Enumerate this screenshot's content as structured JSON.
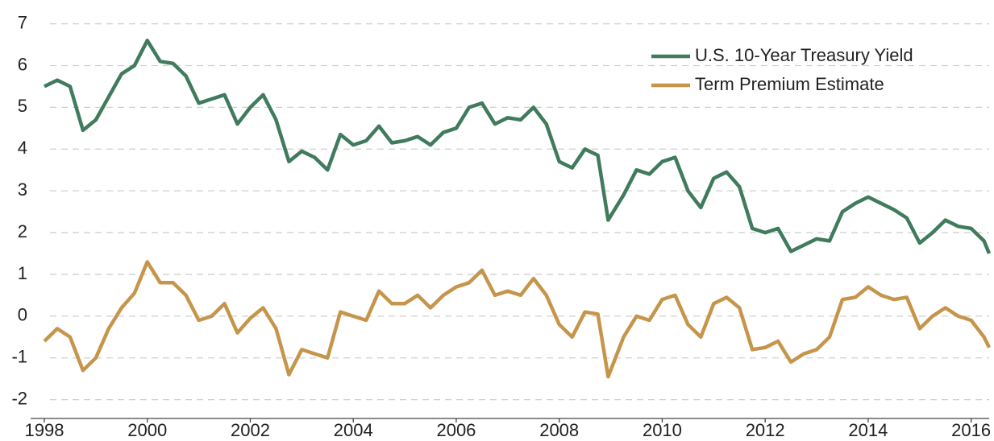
{
  "chart_data": {
    "type": "line",
    "x": [
      1998.0,
      1998.25,
      1998.5,
      1998.75,
      1999.0,
      1999.25,
      1999.5,
      1999.75,
      2000.0,
      2000.25,
      2000.5,
      2000.75,
      2001.0,
      2001.25,
      2001.5,
      2001.75,
      2002.0,
      2002.25,
      2002.5,
      2002.75,
      2003.0,
      2003.25,
      2003.5,
      2003.75,
      2004.0,
      2004.25,
      2004.5,
      2004.75,
      2005.0,
      2005.25,
      2005.5,
      2005.75,
      2006.0,
      2006.25,
      2006.5,
      2006.75,
      2007.0,
      2007.25,
      2007.5,
      2007.75,
      2008.0,
      2008.25,
      2008.5,
      2008.75,
      2008.95,
      2009.25,
      2009.5,
      2009.75,
      2010.0,
      2010.25,
      2010.5,
      2010.75,
      2011.0,
      2011.25,
      2011.5,
      2011.75,
      2012.0,
      2012.25,
      2012.5,
      2012.75,
      2013.0,
      2013.25,
      2013.5,
      2013.75,
      2014.0,
      2014.25,
      2014.5,
      2014.75,
      2015.0,
      2015.25,
      2015.5,
      2015.75,
      2016.0,
      2016.25,
      2016.35
    ],
    "series": [
      {
        "name": "U.S. 10-Year Treasury Yield",
        "color": "#3f7b5c",
        "values": [
          5.5,
          5.65,
          5.5,
          4.45,
          4.7,
          5.25,
          5.8,
          6.0,
          6.6,
          6.1,
          6.05,
          5.75,
          5.1,
          5.2,
          5.3,
          4.6,
          5.0,
          5.3,
          4.7,
          3.7,
          3.95,
          3.8,
          3.5,
          4.35,
          4.1,
          4.2,
          4.55,
          4.15,
          4.2,
          4.3,
          4.1,
          4.4,
          4.5,
          5.0,
          5.1,
          4.6,
          4.75,
          4.7,
          5.0,
          4.6,
          3.7,
          3.55,
          4.0,
          3.85,
          2.3,
          2.9,
          3.5,
          3.4,
          3.7,
          3.8,
          3.0,
          2.6,
          3.3,
          3.45,
          3.1,
          2.1,
          2.0,
          2.1,
          1.55,
          1.7,
          1.85,
          1.8,
          2.5,
          2.7,
          2.85,
          2.7,
          2.55,
          2.35,
          1.75,
          2.0,
          2.3,
          2.15,
          2.1,
          1.8,
          1.5
        ]
      },
      {
        "name": "Term Premium Estimate",
        "color": "#c6954c",
        "values": [
          -0.6,
          -0.3,
          -0.5,
          -1.3,
          -1.0,
          -0.3,
          0.2,
          0.55,
          1.3,
          0.8,
          0.8,
          0.5,
          -0.1,
          0.0,
          0.3,
          -0.4,
          -0.05,
          0.2,
          -0.3,
          -1.4,
          -0.8,
          -0.9,
          -1.0,
          0.1,
          0.0,
          -0.1,
          0.6,
          0.3,
          0.3,
          0.5,
          0.2,
          0.5,
          0.7,
          0.8,
          1.1,
          0.5,
          0.6,
          0.5,
          0.9,
          0.5,
          -0.2,
          -0.5,
          0.1,
          0.05,
          -1.45,
          -0.5,
          0.0,
          -0.1,
          0.4,
          0.5,
          -0.2,
          -0.5,
          0.3,
          0.45,
          0.2,
          -0.8,
          -0.75,
          -0.6,
          -1.1,
          -0.9,
          -0.8,
          -0.5,
          0.4,
          0.45,
          0.7,
          0.5,
          0.4,
          0.45,
          -0.3,
          0.0,
          0.2,
          0.0,
          -0.1,
          -0.5,
          -0.75
        ]
      }
    ],
    "xlim": [
      1998,
      2016.35
    ],
    "xticks": [
      1998,
      2000,
      2002,
      2004,
      2006,
      2008,
      2010,
      2012,
      2014,
      2016
    ],
    "ylim": [
      -2.45,
      7.3
    ],
    "yticks": [
      -2,
      -1,
      0,
      1,
      2,
      3,
      4,
      5,
      6,
      7
    ],
    "grid": true,
    "legend": "upper right"
  }
}
